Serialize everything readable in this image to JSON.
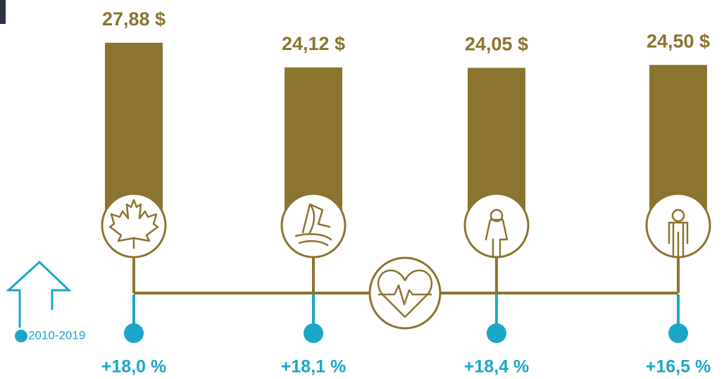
{
  "chart_data": {
    "type": "bar",
    "categories": [
      null,
      null,
      null,
      null
    ],
    "values": [
      27.88,
      24.12,
      24.05,
      24.5
    ],
    "value_labels": [
      "27,88 $",
      "24,12 $",
      "24,05 $",
      "24,50 $"
    ],
    "color": "#8b742f",
    "ylim": [
      0,
      30
    ],
    "changes": {
      "values": [
        18.0,
        18.1,
        18.4,
        16.5
      ],
      "value_labels": [
        "+18,0 %",
        "+18,1 %",
        "+18,4 %",
        "+16,5 %"
      ],
      "color": "#1ba6c8"
    },
    "period": "2010-2019"
  }
}
